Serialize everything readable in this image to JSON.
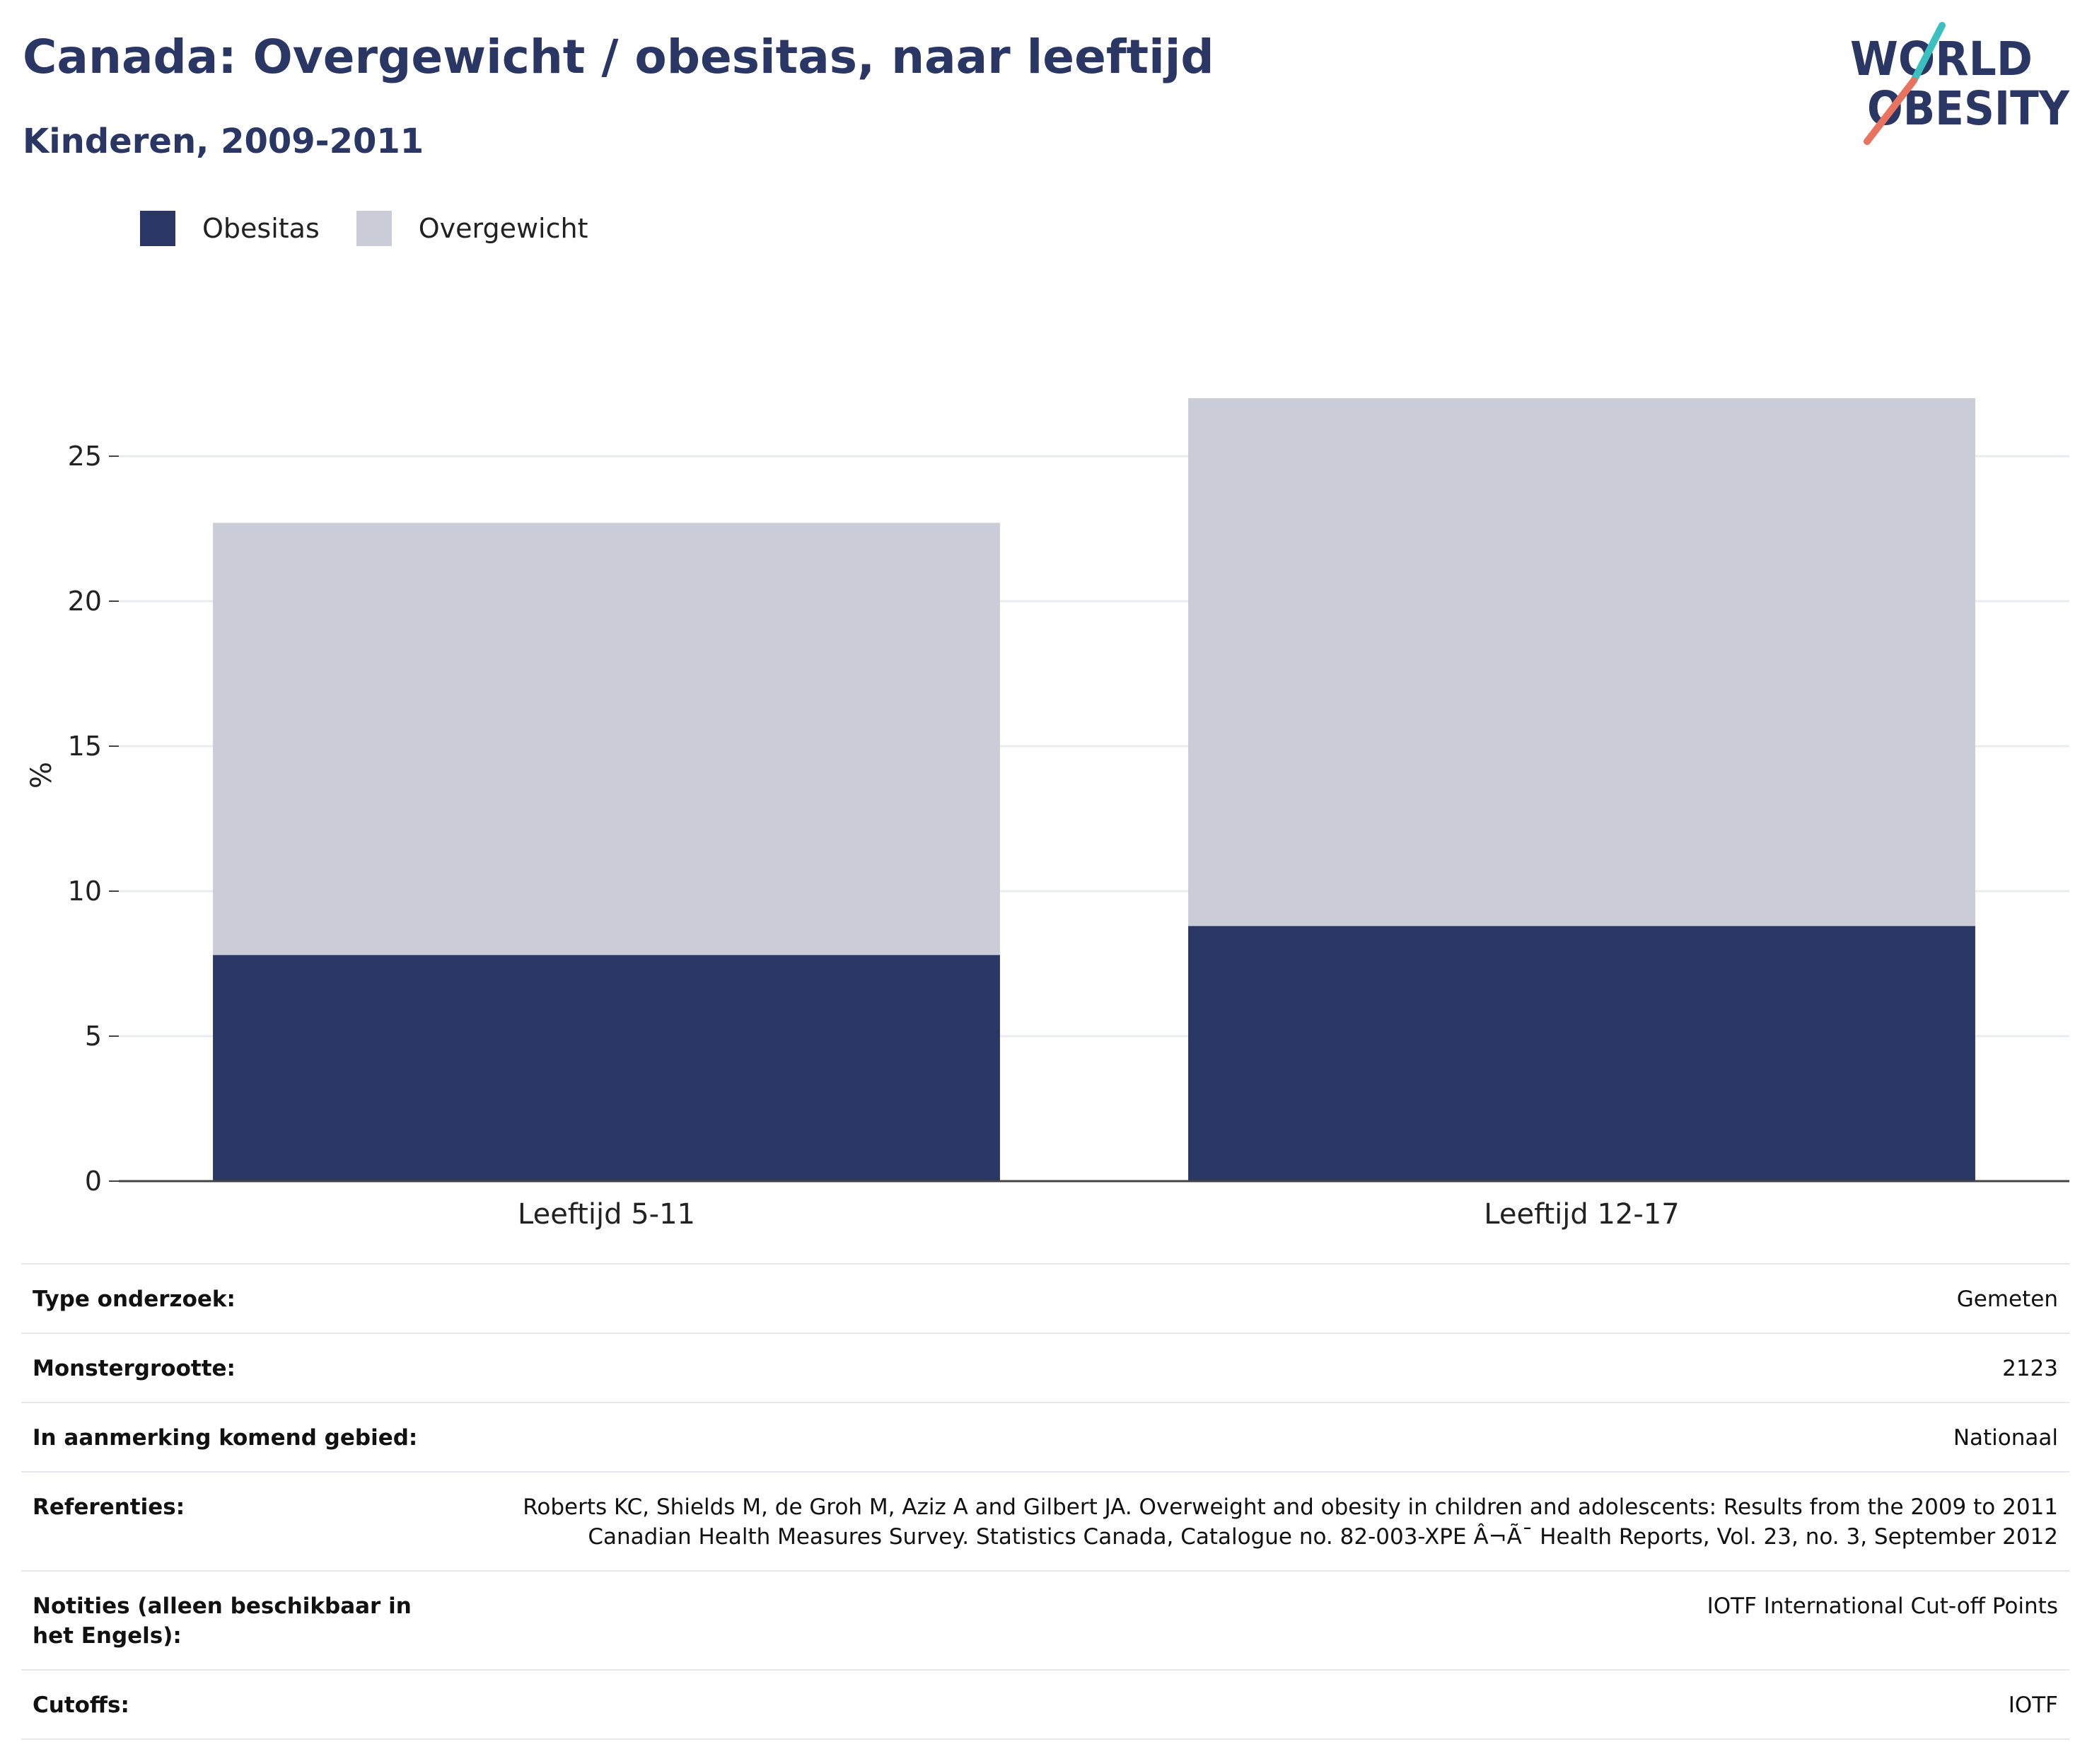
{
  "header": {
    "title": "Canada: Overgewicht / obesitas, naar leeftijd",
    "subtitle": "Kinderen, 2009-2011"
  },
  "logo": {
    "line1": "WORLD",
    "line2": "OBESITY",
    "colors": {
      "text": "#2a3764",
      "slash_top": "#3bbfbf",
      "slash_bottom": "#e8735f"
    }
  },
  "colors": {
    "obesitas": "#2a3764",
    "overgewicht": "#cacdd8",
    "grid": "#e9ebef",
    "axis": "#444444"
  },
  "chart_data": {
    "type": "bar",
    "stacked": true,
    "categories": [
      "Leeftijd 5-11",
      "Leeftijd 12-17"
    ],
    "series": [
      {
        "name": "Obesitas",
        "values": [
          7.8,
          8.8
        ]
      },
      {
        "name": "Overgewicht",
        "values": [
          14.9,
          18.2
        ]
      }
    ],
    "ylabel": "%",
    "xlabel": "",
    "ylim": [
      0,
      28
    ],
    "yticks": [
      0,
      5,
      10,
      15,
      20,
      25
    ],
    "grid": true,
    "legend_position": "top-left"
  },
  "info": {
    "rows": [
      {
        "key": "Type onderzoek:",
        "value": "Gemeten"
      },
      {
        "key": "Monstergrootte:",
        "value": "2123"
      },
      {
        "key": "In aanmerking komend gebied:",
        "value": "Nationaal"
      },
      {
        "key": "Referenties:",
        "value": "Roberts KC, Shields M, de Groh M, Aziz A and Gilbert JA. Overweight and obesity in children and adolescents: Results from the 2009 to 2011 Canadian Health Measures Survey. Statistics Canada, Catalogue no. 82-003-XPE Â¬Ã¯ Health Reports, Vol. 23, no. 3, September 2012"
      },
      {
        "key": "Notities (alleen beschikbaar in het Engels):",
        "value": "IOTF International Cut-off Points"
      },
      {
        "key": "Cutoffs:",
        "value": "IOTF"
      }
    ]
  }
}
